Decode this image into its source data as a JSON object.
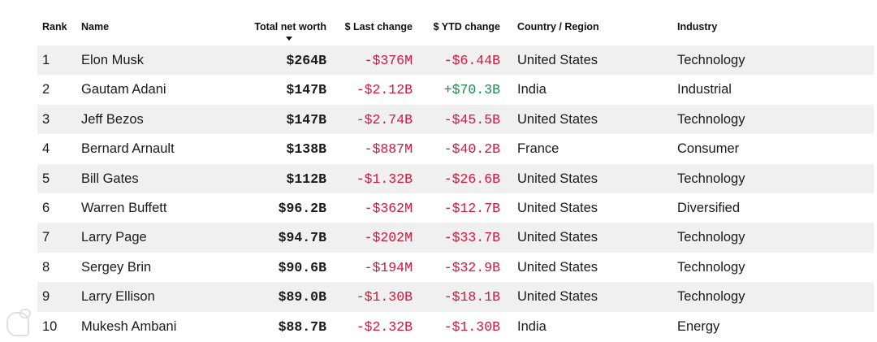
{
  "header": {
    "rank": "Rank",
    "name": "Name",
    "worth": "Total net worth",
    "last": "$ Last change",
    "ytd": "$ YTD change",
    "country": "Country / Region",
    "industry": "Industry"
  },
  "colors": {
    "negative": "#d4173c",
    "positive": "#1f8a4c",
    "stripe": "#f0f0f0"
  },
  "rows": [
    {
      "rank": "1",
      "name": "Elon Musk",
      "worth": "$264B",
      "last": "-$376M",
      "ytd": "-$6.44B",
      "country": "United States",
      "industry": "Technology",
      "last_sign": "neg",
      "ytd_sign": "neg"
    },
    {
      "rank": "2",
      "name": "Gautam Adani",
      "worth": "$147B",
      "last": "-$2.12B",
      "ytd": "+$70.3B",
      "country": "India",
      "industry": "Industrial",
      "last_sign": "neg",
      "ytd_sign": "pos"
    },
    {
      "rank": "3",
      "name": "Jeff Bezos",
      "worth": "$147B",
      "last": "-$2.74B",
      "ytd": "-$45.5B",
      "country": "United States",
      "industry": "Technology",
      "last_sign": "neg",
      "ytd_sign": "neg"
    },
    {
      "rank": "4",
      "name": "Bernard Arnault",
      "worth": "$138B",
      "last": "-$887M",
      "ytd": "-$40.2B",
      "country": "France",
      "industry": "Consumer",
      "last_sign": "neg",
      "ytd_sign": "neg"
    },
    {
      "rank": "5",
      "name": "Bill Gates",
      "worth": "$112B",
      "last": "-$1.32B",
      "ytd": "-$26.6B",
      "country": "United States",
      "industry": "Technology",
      "last_sign": "neg",
      "ytd_sign": "neg"
    },
    {
      "rank": "6",
      "name": "Warren Buffett",
      "worth": "$96.2B",
      "last": "-$362M",
      "ytd": "-$12.7B",
      "country": "United States",
      "industry": "Diversified",
      "last_sign": "neg",
      "ytd_sign": "neg"
    },
    {
      "rank": "7",
      "name": "Larry Page",
      "worth": "$94.7B",
      "last": "-$202M",
      "ytd": "-$33.7B",
      "country": "United States",
      "industry": "Technology",
      "last_sign": "neg",
      "ytd_sign": "neg"
    },
    {
      "rank": "8",
      "name": "Sergey Brin",
      "worth": "$90.6B",
      "last": "-$194M",
      "ytd": "-$32.9B",
      "country": "United States",
      "industry": "Technology",
      "last_sign": "neg",
      "ytd_sign": "neg"
    },
    {
      "rank": "9",
      "name": "Larry Ellison",
      "worth": "$89.0B",
      "last": "-$1.30B",
      "ytd": "-$18.1B",
      "country": "United States",
      "industry": "Technology",
      "last_sign": "neg",
      "ytd_sign": "neg"
    },
    {
      "rank": "10",
      "name": "Mukesh Ambani",
      "worth": "$88.7B",
      "last": "-$2.32B",
      "ytd": "-$1.30B",
      "country": "India",
      "industry": "Energy",
      "last_sign": "neg",
      "ytd_sign": "neg"
    }
  ]
}
